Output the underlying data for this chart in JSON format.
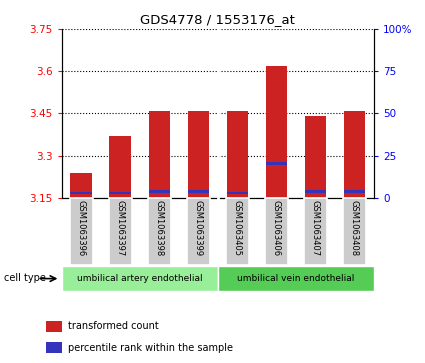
{
  "title": "GDS4778 / 1553176_at",
  "samples": [
    "GSM1063396",
    "GSM1063397",
    "GSM1063398",
    "GSM1063399",
    "GSM1063405",
    "GSM1063406",
    "GSM1063407",
    "GSM1063408"
  ],
  "transformed_count": [
    3.24,
    3.37,
    3.46,
    3.46,
    3.46,
    3.62,
    3.44,
    3.46
  ],
  "percentile_bottom": [
    3.162,
    3.162,
    3.168,
    3.168,
    3.162,
    3.268,
    3.168,
    3.168
  ],
  "percentile_height": [
    0.01,
    0.01,
    0.01,
    0.01,
    0.01,
    0.01,
    0.01,
    0.01
  ],
  "baseline": 3.15,
  "ylim_left": [
    3.15,
    3.75
  ],
  "ylim_right": [
    0,
    100
  ],
  "yticks_left": [
    3.15,
    3.3,
    3.45,
    3.6,
    3.75
  ],
  "ytick_labels_left": [
    "3.15",
    "3.3",
    "3.45",
    "3.6",
    "3.75"
  ],
  "yticks_right": [
    0,
    25,
    50,
    75,
    100
  ],
  "ytick_labels_right": [
    "0",
    "25",
    "50",
    "75",
    "100%"
  ],
  "bar_color": "#cc2222",
  "percentile_color": "#3333bb",
  "cell_types": [
    "umbilical artery endothelial",
    "umbilical vein endothelial"
  ],
  "cell_type_ranges": [
    [
      0,
      4
    ],
    [
      4,
      8
    ]
  ],
  "cell_type_color1": "#99ee99",
  "cell_type_color2": "#55cc55",
  "legend_entries": [
    "transformed count",
    "percentile rank within the sample"
  ],
  "legend_colors": [
    "#cc2222",
    "#3333bb"
  ],
  "bg_color": "#ffffff",
  "bar_width": 0.55,
  "separator_index": 4,
  "cell_type_label": "cell type"
}
